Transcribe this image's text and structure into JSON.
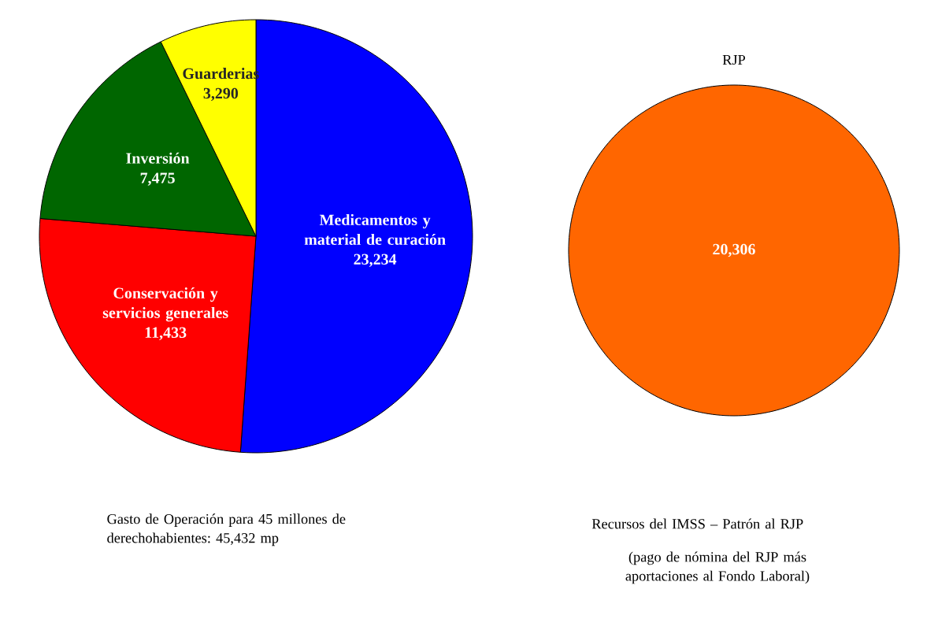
{
  "chart_data": [
    {
      "type": "pie",
      "categories": [
        "Medicamentos y material de curación",
        "Conservación y servicios generales",
        "Inversión",
        "Guarderias"
      ],
      "values": [
        23234,
        11433,
        7475,
        3290
      ],
      "colors": [
        "#0000ff",
        "#ff0000",
        "#006600",
        "#ffff00"
      ],
      "value_labels": [
        "23,234",
        "11,433",
        "7,475",
        "3,290"
      ],
      "annotations": [
        "Gasto de Operación para 45 millones de derechohabientes:",
        "45,432 mp"
      ]
    },
    {
      "type": "pie",
      "title": "RJP",
      "categories": [
        null
      ],
      "values": [
        20306
      ],
      "colors": [
        "#ff6600"
      ],
      "value_labels": [
        "20,306"
      ],
      "annotations": [
        "Recursos del IMSS – Patrón al RJP",
        "(pago de nómina del RJP más aportaciones al Fondo Laboral)"
      ]
    }
  ]
}
